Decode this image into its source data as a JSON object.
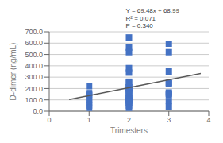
{
  "chart_data": {
    "type": "scatter",
    "title": "",
    "xlabel": "Trimesters",
    "ylabel": "D-dimer (ng/mL)",
    "annotations": [
      "Y = 69.48x + 68.99",
      "R² = 0.071",
      "P = 0.340"
    ],
    "xlim": [
      0,
      4
    ],
    "ylim": [
      0,
      700
    ],
    "xticks": [
      0,
      1,
      2,
      3,
      4
    ],
    "yticks": [
      {
        "value": 0,
        "label": "0.0"
      },
      {
        "value": 100,
        "label": "100.0"
      },
      {
        "value": 200,
        "label": "200.0"
      },
      {
        "value": 300,
        "label": "300.0"
      },
      {
        "value": 400,
        "label": "400.0"
      },
      {
        "value": 500,
        "label": "500.0"
      },
      {
        "value": 600,
        "label": "600.0"
      },
      {
        "value": 700,
        "label": "700.0"
      }
    ],
    "grid": true,
    "series": [
      {
        "type": "scatter",
        "color": "#4472C4",
        "marker": "square",
        "x": [
          1,
          1,
          1,
          1,
          1,
          1,
          1,
          1,
          2,
          2,
          2,
          2,
          2,
          2,
          2,
          2,
          2,
          2,
          2,
          2,
          2,
          2,
          2,
          2,
          2,
          2,
          2,
          2,
          2,
          2,
          2,
          2,
          3,
          3,
          3,
          3,
          3,
          3,
          3,
          3,
          3,
          3
        ],
        "values": [
          220,
          160,
          150,
          140,
          100,
          80,
          50,
          30,
          650,
          560,
          520,
          380,
          340,
          260,
          250,
          210,
          210,
          200,
          190,
          180,
          160,
          150,
          130,
          120,
          110,
          100,
          95,
          90,
          80,
          70,
          50,
          30,
          595,
          520,
          350,
          250,
          245,
          165,
          155,
          145,
          90,
          40
        ]
      },
      {
        "type": "line",
        "color": "#595959",
        "x": [
          0.5,
          3.8
        ],
        "values": [
          103.73,
          333.014
        ]
      }
    ]
  }
}
